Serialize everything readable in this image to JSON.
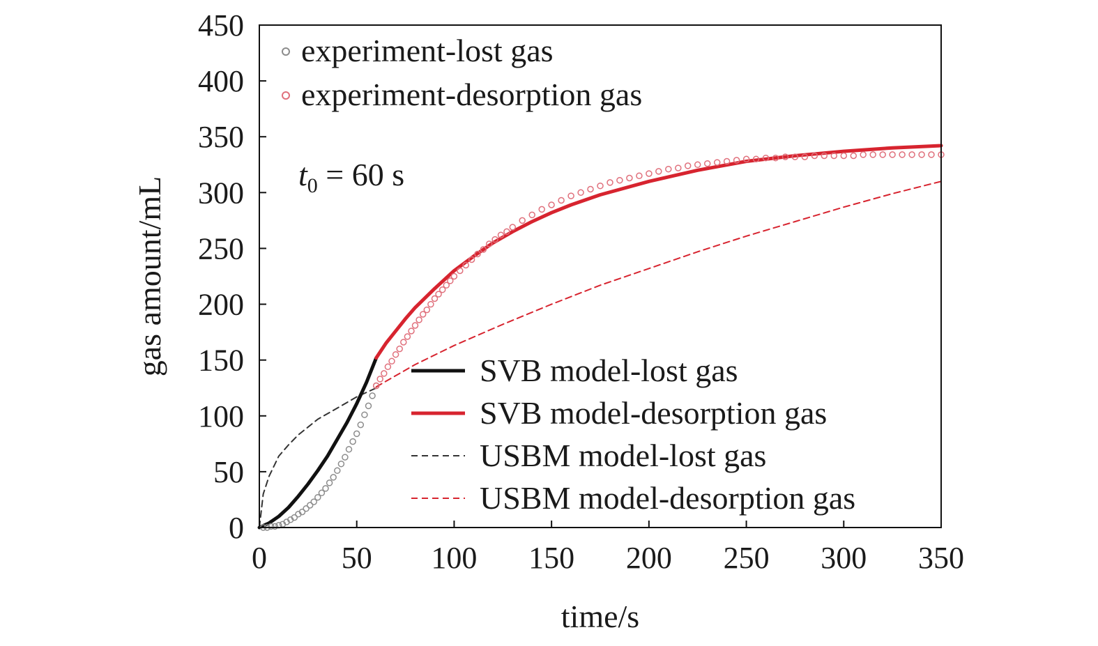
{
  "chart_data": {
    "type": "line",
    "title": "",
    "xlabel": "time/s",
    "ylabel": "gas amount/mL",
    "xlim": [
      0,
      350
    ],
    "ylim": [
      0,
      450
    ],
    "xticks": [
      0,
      50,
      100,
      150,
      200,
      250,
      300,
      350
    ],
    "yticks": [
      0,
      50,
      100,
      150,
      200,
      250,
      300,
      350,
      400,
      450
    ],
    "grid": false,
    "annotation": {
      "var": "t",
      "sub": "0",
      "rest": " = 60 s"
    },
    "colors": {
      "black": "#111111",
      "red": "#d7242f",
      "gray_marker": "#8c8c8c",
      "pink_marker": "#e0707c"
    },
    "scatter_series": [
      {
        "name": "experiment-lost gas",
        "color": "#8c8c8c",
        "x": [
          2,
          4,
          6,
          8,
          10,
          12,
          14,
          16,
          18,
          20,
          22,
          24,
          26,
          28,
          30,
          32,
          34,
          36,
          38,
          40,
          42,
          44,
          46,
          48,
          50,
          52,
          54,
          56,
          58,
          60
        ],
        "y": [
          0,
          0,
          1,
          1,
          2,
          3,
          5,
          7,
          9,
          12,
          14,
          17,
          20,
          23,
          27,
          31,
          35,
          40,
          45,
          51,
          57,
          63,
          70,
          77,
          84,
          92,
          101,
          109,
          118,
          127
        ]
      },
      {
        "name": "experiment-desorption gas",
        "color": "#e0707c",
        "x": [
          60,
          62,
          64,
          66,
          68,
          70,
          72,
          74,
          76,
          78,
          80,
          82,
          84,
          86,
          88,
          90,
          92,
          94,
          96,
          98,
          100,
          103,
          106,
          109,
          112,
          115,
          118,
          121,
          124,
          127,
          130,
          135,
          140,
          145,
          150,
          155,
          160,
          165,
          170,
          175,
          180,
          185,
          190,
          195,
          200,
          205,
          210,
          215,
          220,
          225,
          230,
          235,
          240,
          245,
          250,
          255,
          260,
          265,
          270,
          275,
          280,
          285,
          290,
          295,
          300,
          305,
          310,
          315,
          320,
          325,
          330,
          335,
          340,
          345,
          350
        ],
        "y": [
          127,
          133,
          138,
          144,
          149,
          155,
          160,
          166,
          171,
          176,
          181,
          186,
          191,
          195,
          200,
          205,
          209,
          213,
          217,
          221,
          225,
          230,
          235,
          240,
          245,
          249,
          254,
          258,
          262,
          265,
          269,
          275,
          280,
          285,
          289,
          293,
          297,
          300,
          303,
          306,
          309,
          311,
          313,
          315,
          317,
          319,
          321,
          322,
          324,
          325,
          326,
          327,
          328,
          329,
          330,
          330,
          331,
          331,
          332,
          332,
          332,
          333,
          333,
          333,
          333,
          333,
          334,
          334,
          334,
          334,
          334,
          334,
          334,
          334,
          334
        ]
      }
    ],
    "line_series": [
      {
        "name": "SVB model-lost gas",
        "color": "#111111",
        "dash": "solid",
        "x": [
          0,
          5,
          10,
          15,
          20,
          25,
          30,
          35,
          40,
          45,
          50,
          55,
          60
        ],
        "y": [
          0,
          4,
          10,
          18,
          28,
          39,
          51,
          64,
          79,
          94,
          111,
          130,
          152
        ]
      },
      {
        "name": "SVB model-desorption gas",
        "color": "#d7242f",
        "dash": "solid",
        "x": [
          60,
          65,
          70,
          75,
          80,
          90,
          100,
          110,
          120,
          130,
          140,
          150,
          160,
          175,
          200,
          225,
          250,
          275,
          300,
          325,
          350
        ],
        "y": [
          152,
          165,
          176,
          187,
          197,
          214,
          230,
          243,
          255,
          265,
          274,
          282,
          289,
          298,
          310,
          320,
          328,
          333,
          337,
          340,
          342
        ]
      },
      {
        "name": "USBM model-lost gas",
        "color": "#333333",
        "dash": "dashed",
        "x": [
          0,
          2,
          5,
          10,
          15,
          20,
          25,
          30,
          35,
          40,
          45,
          50,
          55,
          60
        ],
        "y": [
          0,
          30,
          46,
          64,
          74,
          83,
          90,
          97,
          102,
          107,
          112,
          117,
          121,
          125
        ]
      },
      {
        "name": "USBM model-desorption gas",
        "color": "#d7242f",
        "dash": "dashed",
        "x": [
          60,
          80,
          100,
          125,
          150,
          175,
          200,
          225,
          250,
          275,
          300,
          325,
          350
        ],
        "y": [
          126,
          146,
          163,
          182,
          200,
          217,
          232,
          247,
          261,
          274,
          287,
          299,
          310
        ]
      }
    ]
  }
}
